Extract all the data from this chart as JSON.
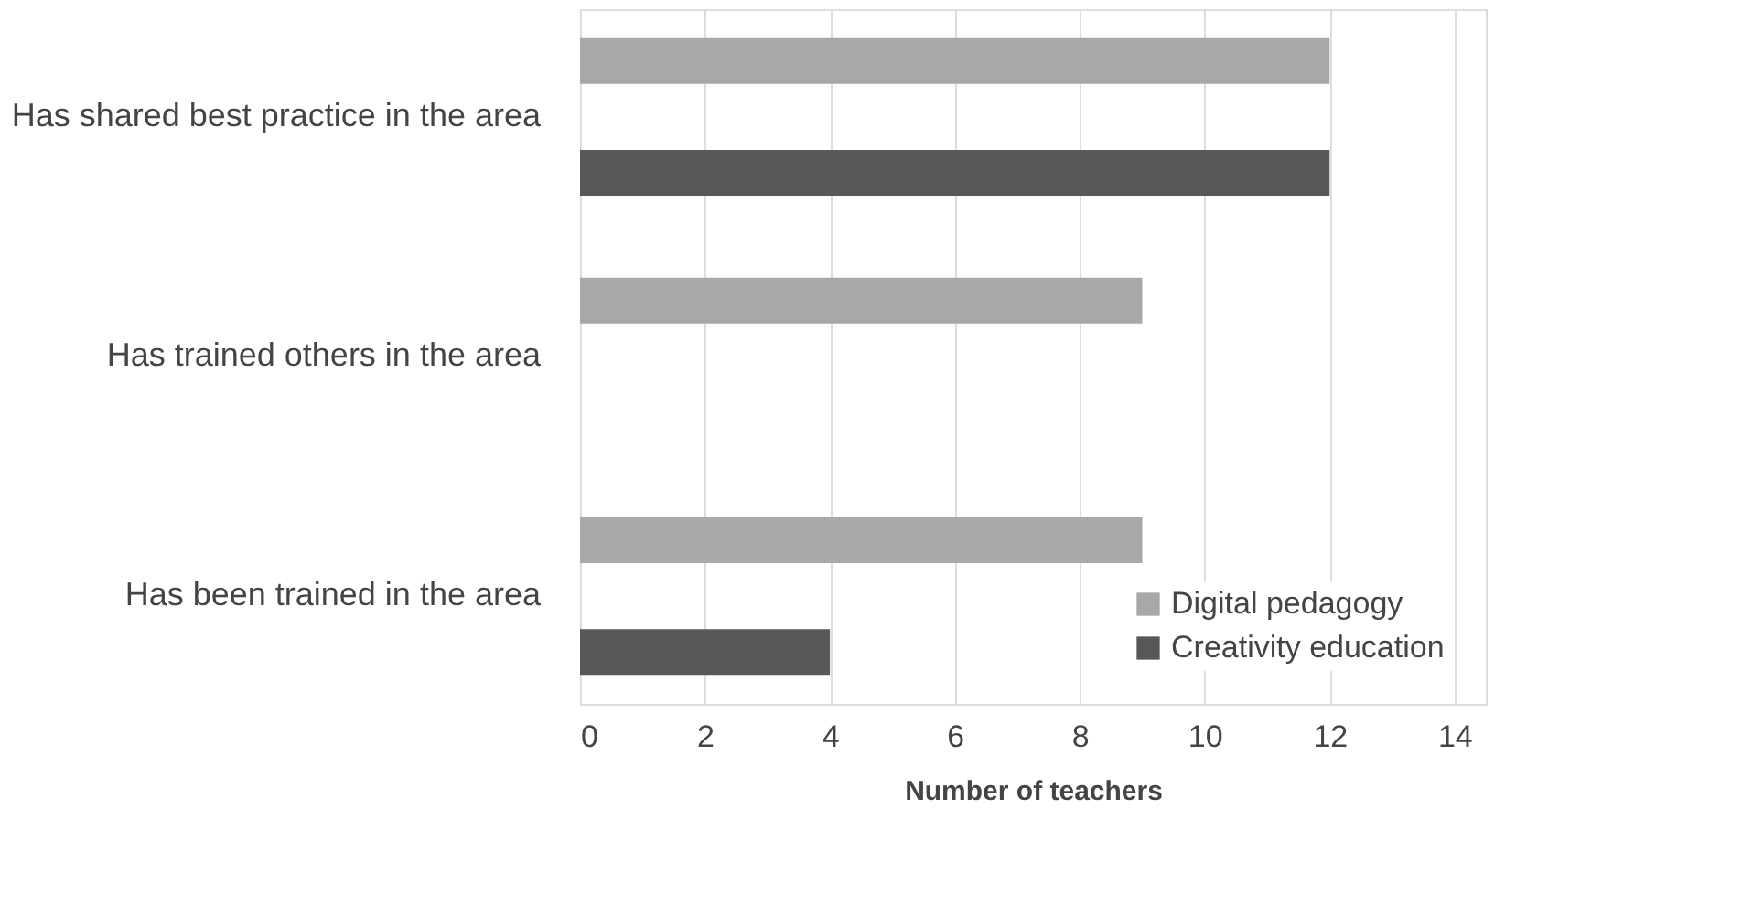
{
  "chart_data": {
    "type": "bar",
    "orientation": "horizontal",
    "xlabel": "Number of teachers",
    "categories": [
      "Has shared best practice in the area",
      "Has trained others in the area",
      "Has been trained in the area"
    ],
    "series": [
      {
        "name": "Digital pedagogy",
        "color": "#a9a8a9",
        "values": [
          12,
          9,
          9
        ]
      },
      {
        "name": "Creativity education",
        "color": "#58585a",
        "values": [
          12,
          null,
          4
        ]
      }
    ],
    "xlim": [
      0,
      14.5
    ],
    "xticks": [
      0,
      2,
      4,
      6,
      8,
      10,
      12,
      14
    ],
    "grid": "x",
    "legend": "bottom right"
  }
}
